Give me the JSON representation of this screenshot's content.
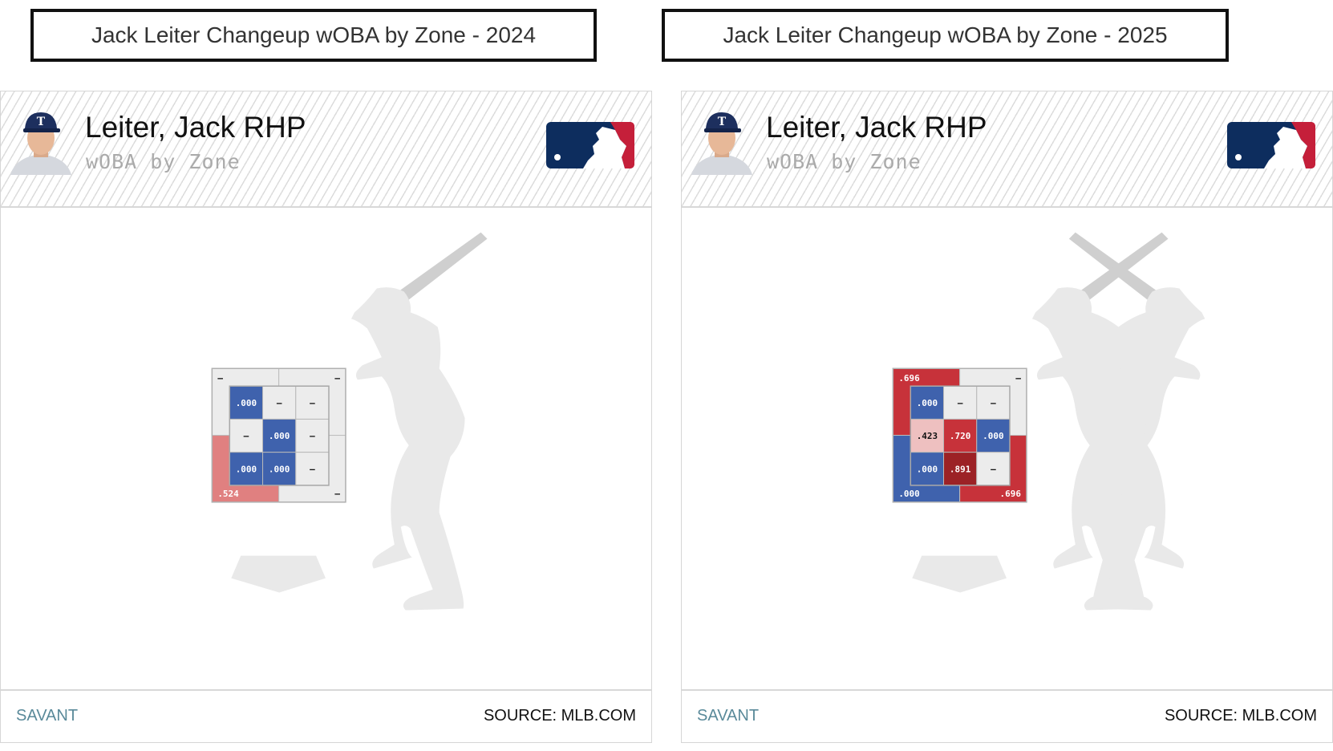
{
  "panels": [
    {
      "title": "Jack Leiter Changeup wOBA by Zone - 2024",
      "player_name": "Leiter, Jack RHP",
      "subtitle": "wOBA by Zone",
      "footer_left": "SAVANT",
      "footer_right": "SOURCE: MLB.COM",
      "batters": [
        "right"
      ],
      "chart_data": {
        "type": "heatmap",
        "metric": "wOBA",
        "inner_zone": [
          [
            ".000",
            "–",
            "–"
          ],
          [
            "–",
            ".000",
            "–"
          ],
          [
            ".000",
            ".000",
            "–"
          ]
        ],
        "outer_zone": {
          "top_left": "–",
          "top_right": "–",
          "bottom_left": ".524",
          "bottom_right": "–"
        }
      }
    },
    {
      "title": "Jack Leiter Changeup wOBA by Zone - 2025",
      "player_name": "Leiter, Jack RHP",
      "subtitle": "wOBA by Zone",
      "footer_left": "SAVANT",
      "footer_right": "SOURCE: MLB.COM",
      "batters": [
        "left",
        "right"
      ],
      "chart_data": {
        "type": "heatmap",
        "metric": "wOBA",
        "inner_zone": [
          [
            ".000",
            "–",
            "–"
          ],
          [
            ".423",
            ".720",
            ".000"
          ],
          [
            ".000",
            ".891",
            "–"
          ]
        ],
        "outer_zone": {
          "top_left": ".696",
          "top_right": "–",
          "bottom_left": ".000",
          "bottom_right": ".696"
        }
      }
    }
  ],
  "colors": {
    "empty": "#ececec",
    "blue": "#3f62ad",
    "red": "#c7323a",
    "light_red": "#e08080",
    "pink": "#eec0c0",
    "dark_red": "#9c2226",
    "silhouette": "#e9e9e9",
    "bat": "#cfcfcf",
    "mlb_navy": "#0d2d5e",
    "mlb_red": "#c51f3a"
  }
}
